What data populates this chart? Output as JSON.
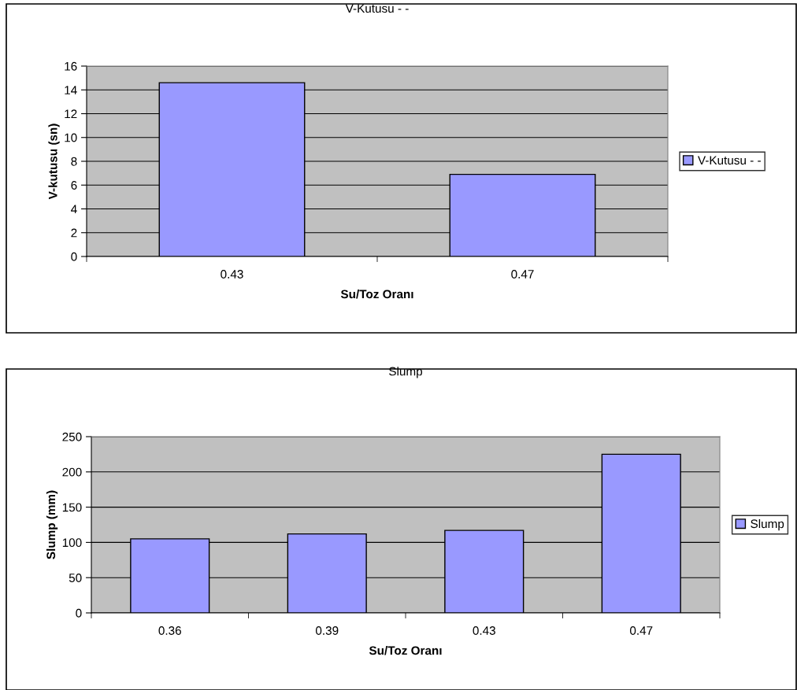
{
  "chart_data": [
    {
      "type": "bar",
      "title": "V-Kutusu - -",
      "xlabel": "Su/Toz Oranı",
      "ylabel": "V-kutusu (sn)",
      "categories": [
        "0.43",
        "0.47"
      ],
      "series": [
        {
          "name": "V-Kutusu - -",
          "color": "#9999ff",
          "values": [
            14.6,
            6.9
          ]
        }
      ],
      "ylim": [
        0,
        16
      ],
      "yticks": [
        0,
        2,
        4,
        6,
        8,
        10,
        12,
        14,
        16
      ],
      "grid": "y",
      "legend": "right"
    },
    {
      "type": "bar",
      "title": "Slump",
      "xlabel": "Su/Toz Oranı",
      "ylabel": "Slump (mm)",
      "categories": [
        "0.36",
        "0.39",
        "0.43",
        "0.47"
      ],
      "series": [
        {
          "name": "Slump",
          "color": "#9999ff",
          "values": [
            105,
            112,
            117,
            225
          ]
        }
      ],
      "ylim": [
        0,
        250
      ],
      "yticks": [
        0,
        50,
        100,
        150,
        200,
        250
      ],
      "grid": "y",
      "legend": "right"
    }
  ]
}
